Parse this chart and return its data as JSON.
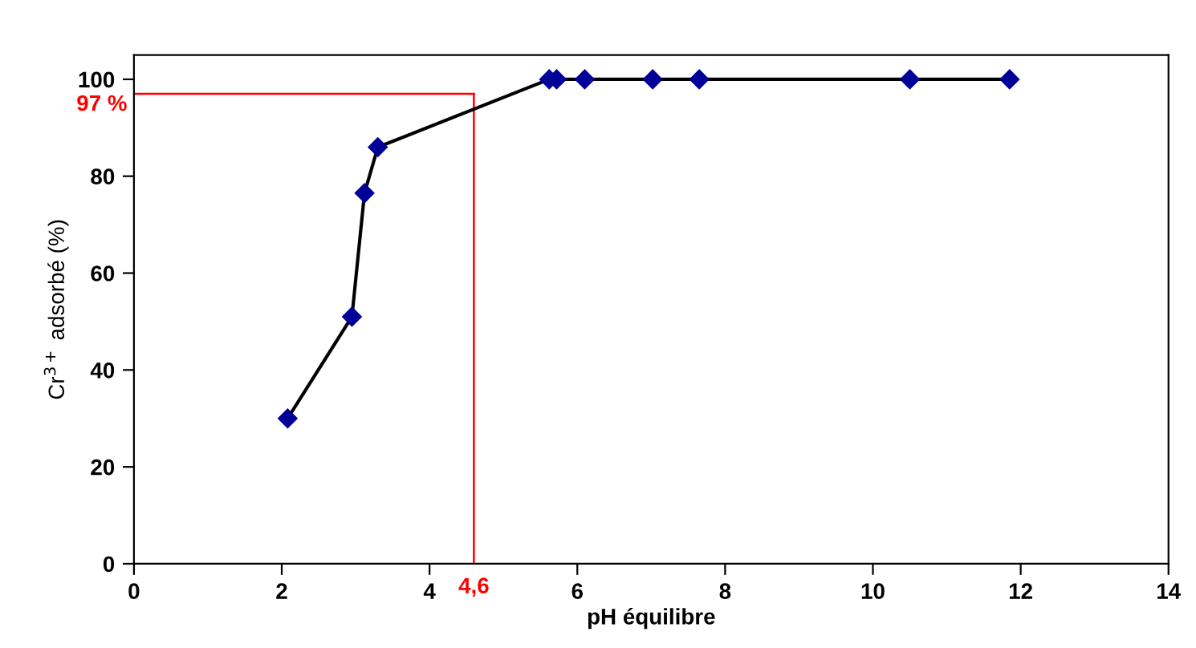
{
  "chart_data": {
    "type": "line",
    "xlabel": "pH équilibre",
    "ylabel": "Cr$^{3+}$ adsorbé (%)",
    "x": [
      2.08,
      2.95,
      3.12,
      3.3,
      5.62,
      5.72,
      6.1,
      7.02,
      7.65,
      10.5,
      11.85
    ],
    "series": [
      {
        "color": "#000099",
        "values": [
          30,
          51,
          76.5,
          86,
          100,
          100,
          100,
          100,
          100,
          100,
          100
        ]
      }
    ],
    "marker": "diamond",
    "line_style": "solid",
    "grid": false,
    "xlim": [
      0,
      14
    ],
    "xticks": [
      0,
      2,
      4,
      6,
      8,
      10,
      12,
      14
    ],
    "ylim": [
      0,
      105
    ],
    "yticks": [
      0,
      20,
      40,
      60,
      80,
      100
    ],
    "ref_lines": [
      {
        "axis": "y",
        "value": 97,
        "color": "#ff0000",
        "label": "97 %"
      },
      {
        "axis": "x",
        "value": 4.6,
        "color": "#ff0000",
        "label": "4,6"
      }
    ]
  }
}
